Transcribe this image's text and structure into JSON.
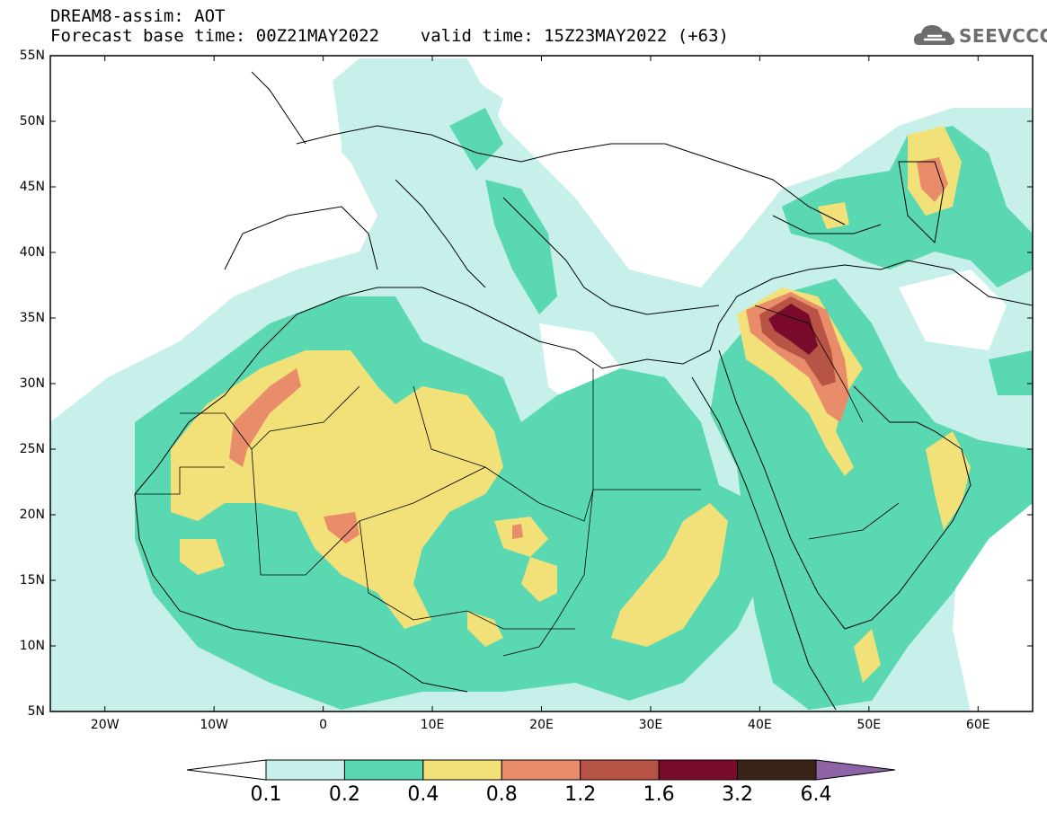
{
  "title": {
    "line1": "DREAM8-assim: AOT",
    "line2": "Forecast base time: 00Z21MAY2022    valid time: 15Z23MAY2022 (+63)"
  },
  "logo": {
    "text": "SEEVCCC",
    "icon": "cloud-icon"
  },
  "map": {
    "lon_range": [
      -25,
      65
    ],
    "lat_range": [
      5,
      55
    ],
    "lat_ticks": [
      "55N",
      "50N",
      "45N",
      "40N",
      "35N",
      "30N",
      "25N",
      "20N",
      "15N",
      "10N",
      "5N"
    ],
    "lon_ticks": [
      "20W",
      "10W",
      "0",
      "10E",
      "20E",
      "30E",
      "40E",
      "50E",
      "60E"
    ]
  },
  "colorbar": {
    "labels": [
      "0.1",
      "0.2",
      "0.4",
      "0.8",
      "1.2",
      "1.6",
      "3.2",
      "6.4"
    ],
    "colors": [
      "#c7f0ea",
      "#5ad8b2",
      "#f2e179",
      "#e88c6a",
      "#b75445",
      "#7a0a2c",
      "#3a2417",
      "#8d63a6"
    ]
  }
}
